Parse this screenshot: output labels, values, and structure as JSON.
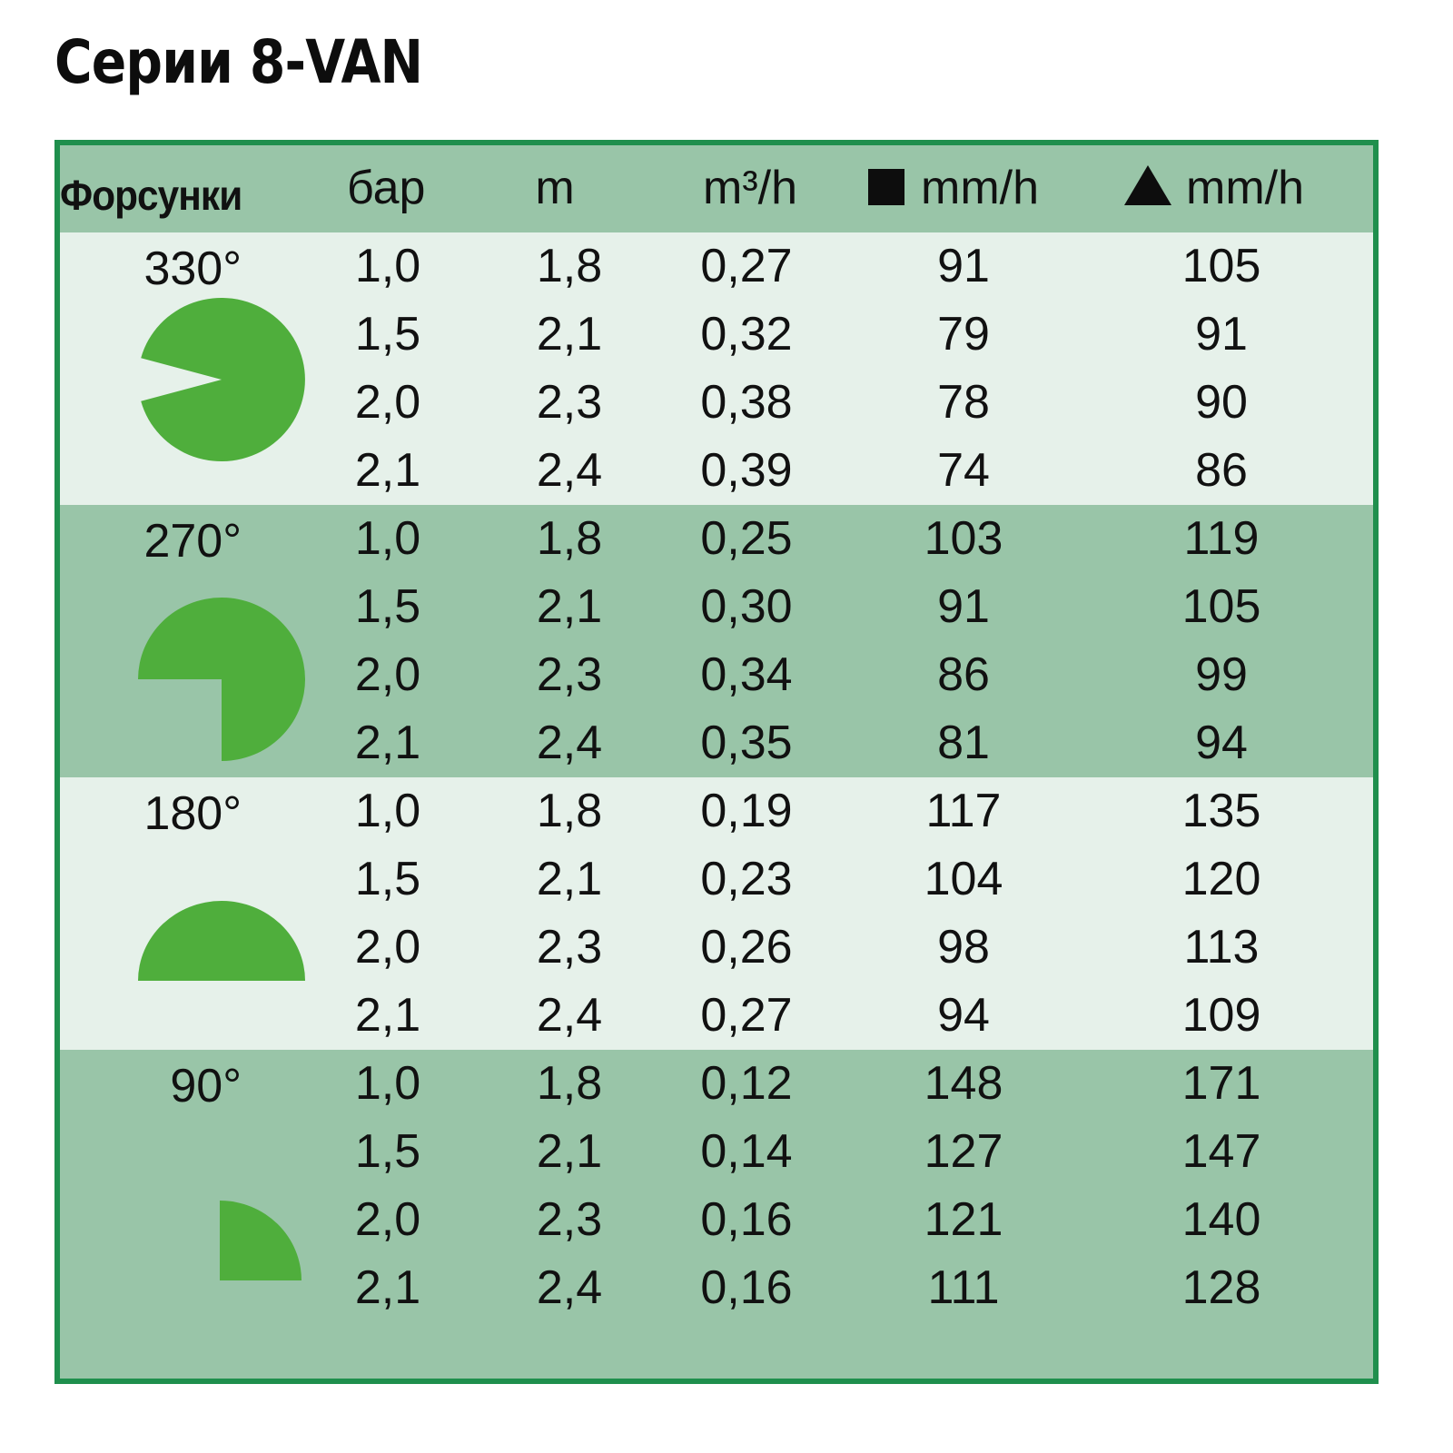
{
  "title": "Серии 8-VAN",
  "header": {
    "nozzles": "Форсунки",
    "pressure": "бар",
    "radius": "m",
    "flow": "m³/h",
    "precip_square": "mm/h",
    "precip_triangle": "mm/h",
    "square_icon": "square-icon",
    "triangle_icon": "triangle-icon"
  },
  "colors": {
    "border": "#1f8f4d",
    "band_dark": "#99c5a8",
    "band_light": "#e6f1ea",
    "shape_green": "#4fae3c"
  },
  "groups": [
    {
      "angle": "330°",
      "rows": [
        {
          "bar": "1,0",
          "m": "1,8",
          "flow": "0,27",
          "sq": "91",
          "tri": "105"
        },
        {
          "bar": "1,5",
          "m": "2,1",
          "flow": "0,32",
          "sq": "79",
          "tri": "91"
        },
        {
          "bar": "2,0",
          "m": "2,3",
          "flow": "0,38",
          "sq": "78",
          "tri": "90"
        },
        {
          "bar": "2,1",
          "m": "2,4",
          "flow": "0,39",
          "sq": "74",
          "tri": "86"
        }
      ]
    },
    {
      "angle": "270°",
      "rows": [
        {
          "bar": "1,0",
          "m": "1,8",
          "flow": "0,25",
          "sq": "103",
          "tri": "119"
        },
        {
          "bar": "1,5",
          "m": "2,1",
          "flow": "0,30",
          "sq": "91",
          "tri": "105"
        },
        {
          "bar": "2,0",
          "m": "2,3",
          "flow": "0,34",
          "sq": "86",
          "tri": "99"
        },
        {
          "bar": "2,1",
          "m": "2,4",
          "flow": "0,35",
          "sq": "81",
          "tri": "94"
        }
      ]
    },
    {
      "angle": "180°",
      "rows": [
        {
          "bar": "1,0",
          "m": "1,8",
          "flow": "0,19",
          "sq": "117",
          "tri": "135"
        },
        {
          "bar": "1,5",
          "m": "2,1",
          "flow": "0,23",
          "sq": "104",
          "tri": "120"
        },
        {
          "bar": "2,0",
          "m": "2,3",
          "flow": "0,26",
          "sq": "98",
          "tri": "113"
        },
        {
          "bar": "2,1",
          "m": "2,4",
          "flow": "0,27",
          "sq": "94",
          "tri": "109"
        }
      ]
    },
    {
      "angle": "90°",
      "rows": [
        {
          "bar": "1,0",
          "m": "1,8",
          "flow": "0,12",
          "sq": "148",
          "tri": "171"
        },
        {
          "bar": "1,5",
          "m": "2,1",
          "flow": "0,14",
          "sq": "127",
          "tri": "147"
        },
        {
          "bar": "2,0",
          "m": "2,3",
          "flow": "0,16",
          "sq": "121",
          "tri": "140"
        },
        {
          "bar": "2,1",
          "m": "2,4",
          "flow": "0,16",
          "sq": "111",
          "tri": "128"
        }
      ]
    }
  ]
}
